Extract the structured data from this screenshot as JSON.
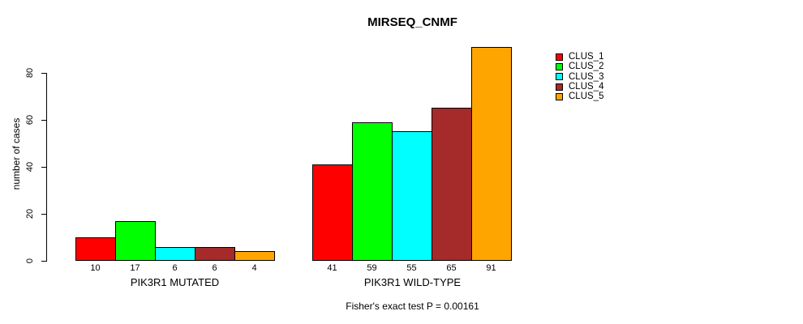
{
  "chart_data": {
    "type": "bar",
    "title": "MIRSEQ_CNMF",
    "ylabel": "number of cases",
    "xlabel": "",
    "categories": [
      "PIK3R1 MUTATED",
      "PIK3R1 WILD-TYPE"
    ],
    "series": [
      {
        "name": "CLUS_1",
        "color": "#FF0000",
        "values": [
          10,
          41
        ]
      },
      {
        "name": "CLUS_2",
        "color": "#00FF00",
        "values": [
          17,
          59
        ]
      },
      {
        "name": "CLUS_3",
        "color": "#00FFFF",
        "values": [
          6,
          55
        ]
      },
      {
        "name": "CLUS_4",
        "color": "#A52A2A",
        "values": [
          6,
          65
        ]
      },
      {
        "name": "CLUS_5",
        "color": "#FFA500",
        "values": [
          4,
          91
        ]
      }
    ],
    "yticks": [
      0,
      20,
      40,
      60,
      80
    ],
    "ylim": [
      0,
      92
    ],
    "grid": false,
    "legend_position": "right",
    "values_labeled_under_bars": true,
    "annotation": "Fisher's exact test P = 0.00161"
  }
}
